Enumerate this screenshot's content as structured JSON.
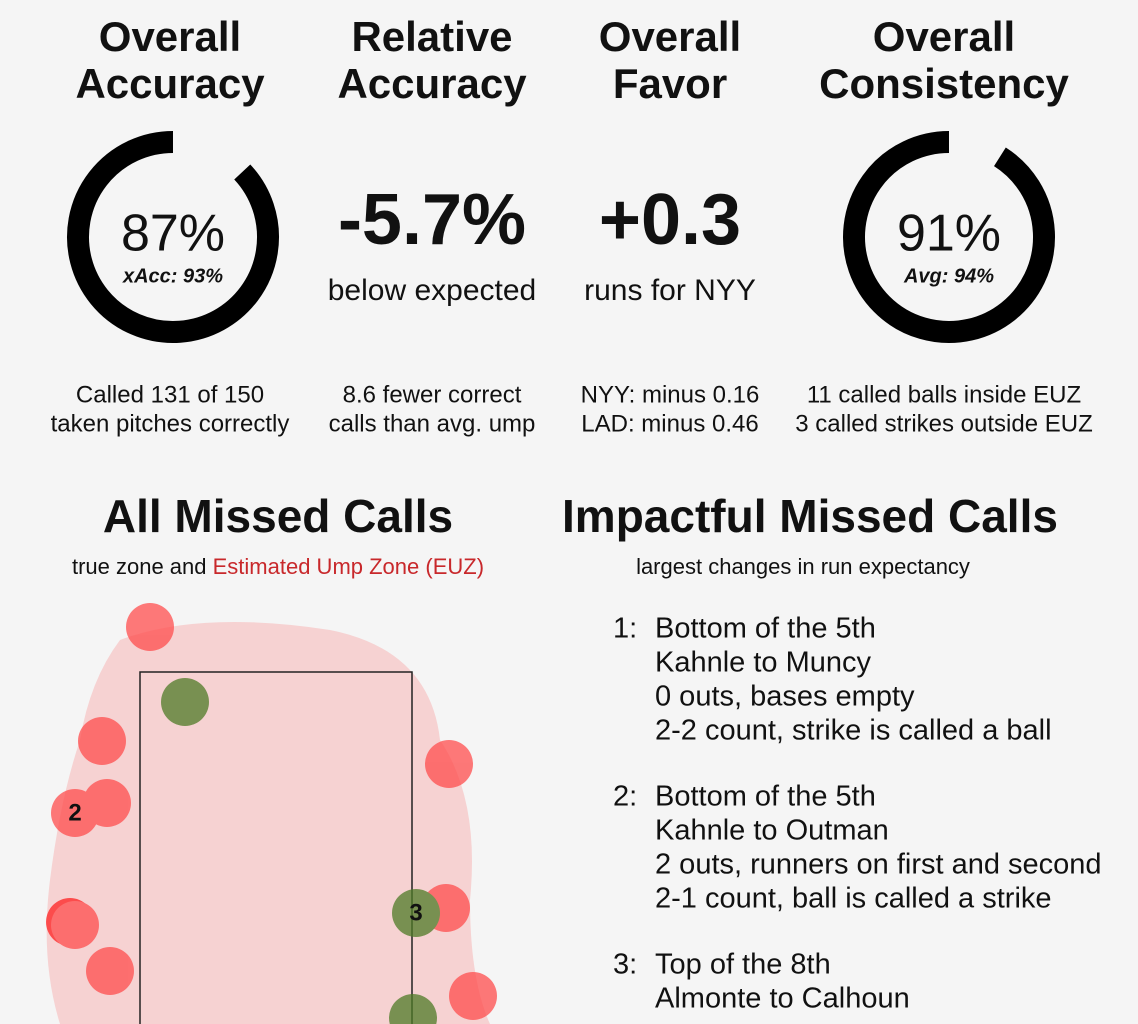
{
  "metrics": [
    {
      "title_line1": "Overall",
      "title_line2": "Accuracy",
      "value": 87,
      "value_label": "87%",
      "sub": "xAcc: 93%",
      "note_line1": "Called 131 of 150",
      "note_line2": "taken pitches correctly"
    },
    {
      "title_line1": "Relative",
      "title_line2": "Accuracy",
      "value_label": "-5.7%",
      "sub": "below expected",
      "note_line1": "8.6 fewer correct",
      "note_line2": "calls than avg. ump"
    },
    {
      "title_line1": "Overall",
      "title_line2": "Favor",
      "value_label": "+0.3",
      "sub": "runs for NYY",
      "note_line1": "NYY: minus 0.16",
      "note_line2": "LAD: minus 0.46"
    },
    {
      "title_line1": "Overall",
      "title_line2": "Consistency",
      "value": 91,
      "value_label": "91%",
      "sub": "Avg: 94%",
      "note_line1": "11 called balls inside EUZ",
      "note_line2": "3 called strikes outside EUZ"
    }
  ],
  "missed": {
    "title": "All Missed Calls",
    "subtitle_plain": "true zone and",
    "subtitle_red": "Estimated Ump Zone (EUZ)",
    "labels": [
      "2",
      "3"
    ]
  },
  "impactful": {
    "title": "Impactful Missed Calls",
    "subtitle": "largest changes in run expectancy",
    "items": [
      {
        "num": "1:",
        "lines": [
          "Bottom of the 5th",
          "Kahnle to Muncy",
          "0 outs, bases empty",
          "2-2 count, strike is called a ball"
        ]
      },
      {
        "num": "2:",
        "lines": [
          "Bottom of the 5th",
          "Kahnle to Outman",
          "2 outs, runners on first and second",
          "2-1 count, ball is called a strike"
        ]
      },
      {
        "num": "3:",
        "lines": [
          "Top of the 8th",
          "Almonte to Calhoun"
        ]
      }
    ]
  }
}
